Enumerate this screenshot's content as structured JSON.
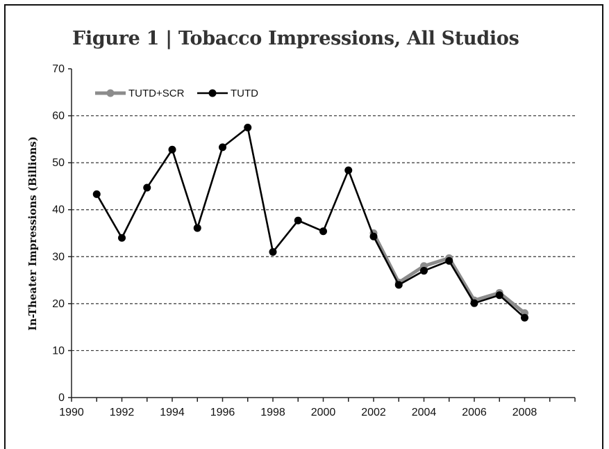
{
  "chart_data": {
    "type": "line",
    "title": "Figure 1 | Tobacco Impressions, All Studios",
    "xlabel": "",
    "ylabel": "In-Theater Impressions (Billions)",
    "xlim": [
      1990,
      2010
    ],
    "ylim": [
      0,
      70
    ],
    "x_ticks": [
      1990,
      1992,
      1994,
      1996,
      1998,
      2000,
      2002,
      2004,
      2006,
      2008
    ],
    "y_ticks": [
      0,
      10,
      20,
      30,
      40,
      50,
      60,
      70
    ],
    "grid": "horizontal-dashed",
    "legend_position": "top-left",
    "series": [
      {
        "name": "TUTD+SCR",
        "color": "#8c8c8c",
        "x": [
          2002,
          2003,
          2004,
          2005,
          2006,
          2007,
          2008
        ],
        "values": [
          35,
          24.5,
          28,
          29.7,
          20.7,
          22.3,
          18
        ]
      },
      {
        "name": "TUTD",
        "color": "#000000",
        "x": [
          1991,
          1992,
          1993,
          1994,
          1995,
          1996,
          1997,
          1998,
          1999,
          2000,
          2001,
          2002,
          2003,
          2004,
          2005,
          2006,
          2007,
          2008
        ],
        "values": [
          43.3,
          34,
          44.7,
          52.8,
          36.1,
          53.3,
          57.5,
          31,
          37.7,
          35.4,
          48.4,
          34.3,
          24,
          27,
          29.1,
          20.1,
          21.8,
          17
        ]
      }
    ]
  }
}
